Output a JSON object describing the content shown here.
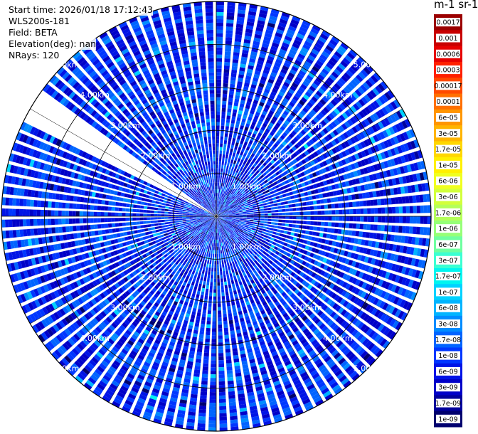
{
  "header": {
    "start_time": "Start time: 2026/01/18 17:12:43",
    "instrument": "WLS200s-181",
    "field": "Field: BETA",
    "elevation": "Elevation(deg): nan",
    "nrays": "NRays: 120"
  },
  "colorbar": {
    "title": "m-1 sr-1",
    "ticks": [
      "0.0017",
      "0.001",
      "0.0006",
      "0.0003",
      "0.00017",
      "0.0001",
      "6e-05",
      "3e-05",
      "1.7e-05",
      "1e-05",
      "6e-06",
      "3e-06",
      "1.7e-06",
      "1e-06",
      "6e-07",
      "3e-07",
      "1.7e-07",
      "1e-07",
      "6e-08",
      "3e-08",
      "1.7e-08",
      "1e-08",
      "6e-09",
      "3e-09",
      "1.7e-09",
      "1e-09"
    ],
    "colors": [
      "#9b0000",
      "#c80000",
      "#e60000",
      "#ff2000",
      "#ff4a00",
      "#ff7000",
      "#ff9600",
      "#ffb400",
      "#ffd700",
      "#fff000",
      "#f0ff20",
      "#d2ff3c",
      "#b4ff5a",
      "#96ff78",
      "#6fffa0",
      "#3cffd2",
      "#00f5f0",
      "#00d2ff",
      "#00b4ff",
      "#008cff",
      "#0064ff",
      "#0037ff",
      "#0014e6",
      "#0000c8",
      "#00009b",
      "#00006e"
    ]
  },
  "chart_data": {
    "type": "heatmap",
    "projection": "polar-ppi",
    "field": "BETA",
    "units": "m-1 sr-1",
    "scale": "log",
    "vmin": 1e-09,
    "vmax": 0.0017,
    "n_rays": 120,
    "max_range_km": 5.0,
    "range_ring_labels": [
      "1.00km",
      "2.00km",
      "3.00km",
      "4.00km",
      "5.00km"
    ],
    "missing_sector_deg": [
      297,
      306
    ],
    "typical_value_range": [
      3e-09,
      3e-08
    ]
  }
}
